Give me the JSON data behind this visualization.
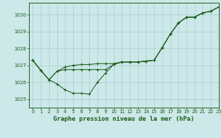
{
  "bg_color": "#cce8e8",
  "grid_color": "#aacccc",
  "line_color": "#1a5c1a",
  "title": "Graphe pression niveau de la mer (hPa)",
  "xlim": [
    -0.5,
    23
  ],
  "ylim": [
    1024.5,
    1030.7
  ],
  "yticks": [
    1025,
    1026,
    1027,
    1028,
    1029,
    1030
  ],
  "xticks": [
    0,
    1,
    2,
    3,
    4,
    5,
    6,
    7,
    8,
    9,
    10,
    11,
    12,
    13,
    14,
    15,
    16,
    17,
    18,
    19,
    20,
    21,
    22,
    23
  ],
  "series1_y": [
    1027.3,
    1026.7,
    1026.15,
    1025.9,
    1025.55,
    1025.35,
    1025.35,
    1025.3,
    1026.0,
    1026.55,
    1027.05,
    1027.2,
    1027.2,
    1027.2,
    1027.25,
    1027.3,
    1028.05,
    1028.85,
    1029.5,
    1029.85,
    1029.85,
    1030.1,
    1030.2,
    1030.45
  ],
  "series2_y": [
    1027.3,
    1026.7,
    1026.15,
    1026.65,
    1026.75,
    1026.75,
    1026.75,
    1026.75,
    1026.75,
    1026.75,
    1027.05,
    1027.2,
    1027.2,
    1027.2,
    1027.25,
    1027.3,
    1028.05,
    1028.85,
    1029.5,
    1029.85,
    1029.85,
    1030.1,
    1030.2,
    1030.45
  ],
  "series3_y": [
    1027.3,
    1026.7,
    1026.15,
    1026.65,
    1026.9,
    1027.0,
    1027.05,
    1027.05,
    1027.1,
    1027.1,
    1027.1,
    1027.2,
    1027.2,
    1027.2,
    1027.25,
    1027.3,
    1028.05,
    1028.85,
    1029.5,
    1029.85,
    1029.85,
    1030.1,
    1030.2,
    1030.45
  ],
  "title_fontsize": 6.5,
  "tick_fontsize": 5.0,
  "lw": 0.75,
  "ms": 2.5
}
